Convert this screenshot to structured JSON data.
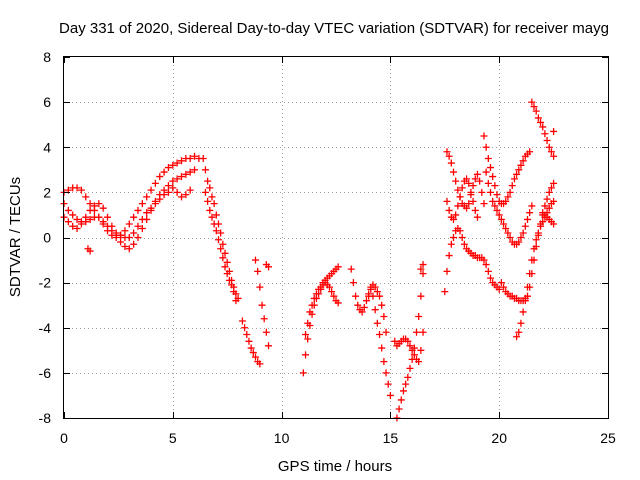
{
  "chart_data": {
    "type": "scatter",
    "title": "Day 331 of 2020, Sidereal Day-to-day VTEC variation (SDTVAR) for receiver mayg",
    "xlabel": "GPS time / hours",
    "ylabel": "SDTVAR / TECUs",
    "xlim": [
      0,
      25
    ],
    "ylim": [
      -8,
      8
    ],
    "xticks": [
      "0",
      "5",
      "10",
      "15",
      "20",
      "25"
    ],
    "yticks": [
      "-8",
      "-6",
      "-4",
      "-2",
      "0",
      "2",
      "4",
      "6",
      "8"
    ],
    "grid": true,
    "marker": "+",
    "color": "#ff0000",
    "series": [
      {
        "x": [
          0.0,
          0.2,
          0.4,
          0.6,
          0.8,
          1.0,
          1.2,
          1.4,
          1.6,
          1.8,
          2.0,
          2.2,
          2.4,
          2.6,
          2.8,
          3.0,
          3.2,
          3.4,
          3.6,
          3.8,
          4.0,
          4.2,
          4.4,
          4.6,
          4.8,
          5.0,
          5.2,
          5.4,
          5.6,
          5.8,
          6.0,
          6.2
        ],
        "y": [
          2.0,
          2.1,
          2.2,
          2.2,
          2.1,
          1.8,
          1.5,
          1.2,
          0.9,
          0.6,
          0.3,
          0.1,
          0.0,
          0.1,
          0.3,
          0.6,
          0.9,
          1.2,
          1.5,
          1.8,
          2.1,
          2.4,
          2.7,
          2.9,
          3.1,
          3.2,
          3.3,
          3.4,
          3.5,
          3.5,
          3.6,
          3.5
        ]
      },
      {
        "x": [
          0.0,
          0.2,
          0.4,
          0.6,
          0.8,
          1.0,
          1.2,
          1.4,
          1.6,
          1.8,
          2.0,
          2.2,
          2.4,
          2.6,
          2.8,
          3.0,
          3.2,
          3.4,
          3.6,
          3.8,
          4.0,
          4.2,
          4.4,
          4.6,
          4.8,
          5.0,
          5.2,
          5.4,
          5.6,
          5.8,
          6.0
        ],
        "y": [
          1.5,
          1.2,
          1.0,
          0.8,
          0.7,
          0.7,
          0.8,
          0.9,
          0.9,
          0.7,
          0.5,
          0.3,
          0.2,
          0.1,
          0.0,
          0.0,
          0.2,
          0.5,
          0.8,
          1.1,
          1.3,
          1.6,
          1.9,
          2.1,
          2.3,
          2.5,
          2.6,
          2.7,
          2.8,
          2.9,
          3.0
        ]
      },
      {
        "x": [
          0.0,
          0.2,
          0.4,
          0.6,
          0.8,
          1.0,
          1.2,
          1.4,
          1.6,
          1.8,
          2.0,
          2.2,
          2.4,
          2.6,
          2.8,
          3.0,
          3.2,
          3.4,
          3.6,
          3.8,
          4.0,
          4.2,
          4.4,
          4.6,
          4.8,
          5.0,
          5.2,
          5.4,
          5.6,
          5.8
        ],
        "y": [
          0.9,
          0.7,
          0.5,
          0.4,
          0.6,
          0.9,
          1.2,
          1.4,
          1.5,
          1.3,
          0.9,
          0.5,
          0.1,
          -0.2,
          -0.4,
          -0.5,
          -0.3,
          0.0,
          0.4,
          0.8,
          1.2,
          1.5,
          1.7,
          1.9,
          2.0,
          2.2,
          2.0,
          1.8,
          1.9,
          2.1
        ]
      },
      {
        "x": [
          1.1,
          1.2
        ],
        "y": [
          -0.5,
          -0.6
        ]
      },
      {
        "x": [
          6.4,
          6.5,
          6.6,
          6.7,
          6.8,
          6.9,
          7.0,
          7.1,
          7.2,
          7.3,
          7.4,
          7.5,
          7.6,
          7.7,
          7.8,
          7.9,
          8.0
        ],
        "y": [
          3.5,
          3.0,
          2.5,
          2.2,
          1.8,
          1.5,
          1.0,
          0.6,
          0.2,
          -0.3,
          -0.7,
          -1.1,
          -1.5,
          -1.9,
          -2.2,
          -2.5,
          -2.7
        ]
      },
      {
        "x": [
          6.5,
          6.6,
          6.7,
          6.8,
          6.9,
          7.0,
          7.1,
          7.2,
          7.3,
          7.4,
          7.5,
          7.6,
          7.7,
          7.8,
          7.9
        ],
        "y": [
          2.0,
          1.6,
          1.2,
          0.9,
          0.6,
          0.3,
          -0.1,
          -0.5,
          -0.9,
          -1.3,
          -1.6,
          -1.9,
          -2.1,
          -2.4,
          -2.8
        ]
      },
      {
        "x": [
          8.2,
          8.3,
          8.4,
          8.5,
          8.6,
          8.7,
          8.8,
          8.9,
          9.0
        ],
        "y": [
          -3.7,
          -4.0,
          -4.3,
          -4.6,
          -4.9,
          -5.1,
          -5.3,
          -5.5,
          -5.6
        ]
      },
      {
        "x": [
          8.8,
          8.9,
          9.0,
          9.1,
          9.2,
          9.3,
          9.4
        ],
        "y": [
          -1.0,
          -1.5,
          -2.2,
          -3.0,
          -3.6,
          -4.2,
          -4.8
        ]
      },
      {
        "x": [
          9.3,
          9.4
        ],
        "y": [
          -1.2,
          -1.3
        ]
      },
      {
        "x": [
          11.0,
          11.1,
          11.2,
          11.3,
          11.4,
          11.5,
          11.6,
          11.7,
          11.8,
          11.9,
          12.0,
          12.1,
          12.2,
          12.3,
          12.4,
          12.5,
          12.6
        ],
        "y": [
          -6.0,
          -5.2,
          -4.5,
          -3.9,
          -3.4,
          -3.0,
          -2.7,
          -2.5,
          -2.3,
          -2.1,
          -2.0,
          -2.1,
          -2.2,
          -2.4,
          -2.6,
          -2.8,
          -2.9
        ]
      },
      {
        "x": [
          11.1,
          11.2,
          11.3,
          11.4,
          11.5,
          11.6,
          11.7,
          11.8,
          11.9,
          12.0,
          12.1,
          12.2,
          12.3,
          12.4,
          12.5,
          12.6
        ],
        "y": [
          -4.3,
          -3.8,
          -3.3,
          -3.0,
          -2.7,
          -2.5,
          -2.3,
          -2.2,
          -2.0,
          -1.9,
          -1.8,
          -1.7,
          -1.6,
          -1.5,
          -1.4,
          -1.3
        ]
      },
      {
        "x": [
          13.2,
          13.3,
          13.4,
          13.5,
          13.6,
          13.7,
          13.8,
          13.9,
          14.0,
          14.1,
          14.2,
          14.3,
          14.4,
          14.5,
          14.6,
          14.7,
          14.8,
          14.9,
          15.0
        ],
        "y": [
          -1.4,
          -2.0,
          -2.6,
          -3.0,
          -3.2,
          -3.3,
          -3.1,
          -2.8,
          -2.5,
          -2.2,
          -2.6,
          -3.2,
          -3.8,
          -4.3,
          -4.9,
          -5.5,
          -6.0,
          -6.5,
          -7.0
        ]
      },
      {
        "x": [
          14.0,
          14.1,
          14.2,
          14.3,
          14.4,
          14.5,
          14.6,
          14.7,
          14.8
        ],
        "y": [
          -2.6,
          -2.3,
          -2.1,
          -2.2,
          -2.4,
          -2.6,
          -3.0,
          -3.5,
          -4.2
        ]
      },
      {
        "x": [
          15.3,
          15.4,
          15.5,
          15.6,
          15.7,
          15.8,
          15.9,
          16.0,
          16.1,
          16.2,
          16.3,
          16.4,
          16.5
        ],
        "y": [
          -8.0,
          -7.6,
          -7.2,
          -6.8,
          -6.5,
          -6.2,
          -5.8,
          -5.4,
          -4.9,
          -4.2,
          -3.5,
          -2.6,
          -1.6
        ]
      },
      {
        "x": [
          15.2,
          15.3,
          15.4,
          15.5,
          15.6,
          15.7,
          15.8,
          15.9,
          16.0,
          16.1,
          16.2,
          16.3,
          16.4,
          16.5
        ],
        "y": [
          -4.6,
          -4.8,
          -4.7,
          -4.6,
          -4.5,
          -4.5,
          -4.6,
          -4.8,
          -5.0,
          -5.2,
          -5.4,
          -5.5,
          -5.0,
          -4.2
        ]
      },
      {
        "x": [
          16.4,
          16.5
        ],
        "y": [
          -1.4,
          -1.2
        ]
      },
      {
        "x": [
          17.5,
          17.6,
          17.7,
          17.8,
          17.9,
          18.0,
          18.1,
          18.2,
          18.3,
          18.4,
          18.5,
          18.6,
          18.7,
          18.8,
          18.9,
          19.0,
          19.1,
          19.2,
          19.3,
          19.4,
          19.5,
          19.6,
          19.7,
          19.8,
          19.9,
          20.0
        ],
        "y": [
          -2.4,
          -1.5,
          -0.8,
          -0.3,
          0.0,
          0.3,
          0.4,
          0.3,
          0.0,
          -0.3,
          -0.5,
          -0.6,
          -0.7,
          -0.8,
          -0.8,
          -0.9,
          -0.9,
          -0.9,
          -1.0,
          -1.2,
          -1.5,
          -1.8,
          -2.0,
          -2.1,
          -2.2,
          -2.3
        ]
      },
      {
        "x": [
          17.6,
          17.7,
          17.8,
          17.9,
          18.0,
          18.1,
          18.2,
          18.3,
          18.4,
          18.5,
          18.6,
          18.7,
          18.8,
          18.9,
          19.0,
          19.1,
          19.2,
          19.3
        ],
        "y": [
          3.8,
          3.6,
          3.3,
          2.9,
          2.5,
          2.1,
          1.8,
          1.5,
          1.4,
          1.3,
          1.5,
          1.9,
          2.3,
          2.6,
          2.8,
          2.5,
          2.0,
          1.5
        ]
      },
      {
        "x": [
          17.6,
          17.7,
          17.8,
          17.9,
          18.0,
          18.1,
          18.2,
          18.3,
          18.4,
          18.5,
          18.6,
          18.7,
          18.8,
          18.9,
          19.0
        ],
        "y": [
          1.6,
          1.2,
          0.9,
          0.8,
          1.0,
          1.4,
          1.8,
          2.2,
          2.5,
          2.6,
          2.4,
          2.0,
          1.6,
          1.2,
          0.9
        ]
      },
      {
        "x": [
          19.3,
          19.4,
          19.5,
          19.6,
          19.7,
          19.8,
          19.9,
          20.0,
          20.1,
          20.2,
          20.3,
          20.4,
          20.5,
          20.6,
          20.7,
          20.8,
          20.9,
          21.0,
          21.1,
          21.2,
          21.3,
          21.4
        ],
        "y": [
          4.5,
          4.0,
          3.5,
          3.1,
          2.7,
          2.3,
          1.9,
          1.6,
          1.5,
          1.5,
          1.6,
          1.8,
          2.0,
          2.3,
          2.6,
          2.8,
          3.0,
          3.2,
          3.4,
          3.6,
          3.7,
          3.8
        ]
      },
      {
        "x": [
          19.4,
          19.5,
          19.6,
          19.7,
          19.8,
          19.9,
          20.0,
          20.1,
          20.2,
          20.3,
          20.4,
          20.5,
          20.6,
          20.7,
          20.8,
          20.9,
          21.0,
          21.1,
          21.2,
          21.3,
          21.4,
          21.5
        ],
        "y": [
          2.9,
          2.4,
          2.0,
          1.6,
          1.4,
          1.2,
          1.0,
          0.8,
          0.6,
          0.4,
          0.2,
          0.0,
          -0.2,
          -0.3,
          -0.3,
          -0.2,
          0.0,
          0.2,
          0.5,
          0.8,
          1.1,
          1.4
        ]
      },
      {
        "x": [
          20.1,
          20.2,
          20.3,
          20.4,
          20.5,
          20.6,
          20.7,
          20.8,
          20.9,
          21.0,
          21.1,
          21.2,
          21.3,
          21.4,
          21.5,
          21.6,
          21.7,
          21.8,
          21.9,
          22.0,
          22.1,
          22.2,
          22.3,
          22.4,
          22.5
        ],
        "y": [
          -2.0,
          -2.2,
          -2.4,
          -2.5,
          -2.6,
          -2.6,
          -2.7,
          -2.7,
          -2.8,
          -2.8,
          -2.8,
          -2.7,
          -2.6,
          -2.2,
          -1.6,
          -1.0,
          -0.4,
          0.1,
          0.6,
          1.0,
          1.4,
          1.7,
          2.0,
          2.2,
          2.4
        ]
      },
      {
        "x": [
          20.8,
          20.9,
          21.0,
          21.1,
          21.2,
          21.3,
          21.4,
          21.5,
          21.6,
          21.7,
          21.8,
          21.9,
          22.0,
          22.1,
          22.2,
          22.3,
          22.4,
          22.5
        ],
        "y": [
          -4.4,
          -4.2,
          -3.8,
          -3.3,
          -2.8,
          -2.2,
          -1.6,
          -1.0,
          -0.5,
          -0.1,
          0.2,
          0.5,
          0.7,
          0.9,
          1.1,
          1.3,
          1.5,
          1.6
        ]
      },
      {
        "x": [
          21.5,
          21.6,
          21.7,
          21.8,
          21.9,
          22.0,
          22.1,
          22.2,
          22.3,
          22.4,
          22.5
        ],
        "y": [
          6.0,
          5.8,
          5.6,
          5.3,
          5.1,
          4.9,
          4.6,
          4.3,
          4.0,
          3.8,
          3.6
        ]
      },
      {
        "x": [
          22.0,
          22.1,
          22.2,
          22.3,
          22.4,
          22.5
        ],
        "y": [
          1.1,
          1.0,
          0.9,
          0.8,
          0.7,
          0.6
        ]
      },
      {
        "x": [
          22.5
        ],
        "y": [
          4.7
        ]
      }
    ]
  }
}
